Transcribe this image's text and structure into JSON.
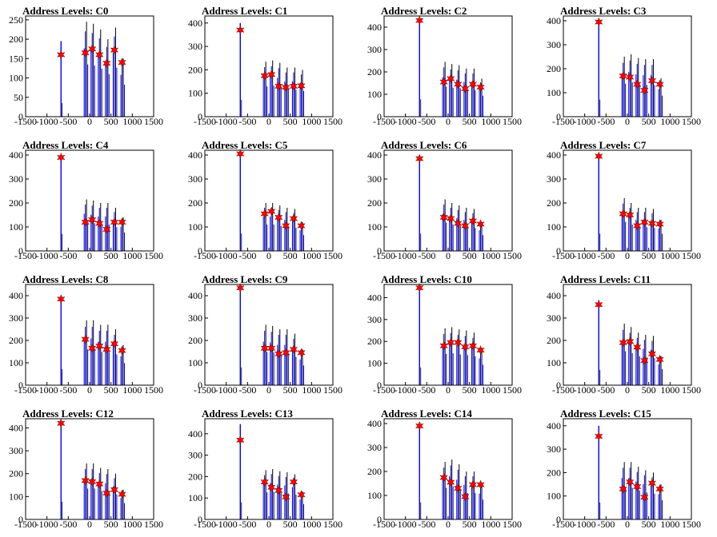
{
  "colors": {
    "trace_blue": "#0000ff",
    "trace_black": "#000000",
    "marker": "#ff0000",
    "frame": "#000000"
  },
  "chart_data": [
    {
      "type": "line",
      "title": "Address Levels: C0",
      "x_ticks": [
        "-1500",
        "-1000",
        "-500",
        "0",
        "500",
        "1000",
        "1500"
      ],
      "xlim": [
        -1500,
        1500
      ],
      "y_ticks": [
        "0",
        "50",
        "100",
        "150",
        "200",
        "250"
      ],
      "ylim": [
        0,
        260
      ],
      "x": [
        -670,
        -100,
        60,
        230,
        400,
        580,
        760
      ],
      "spike_heights": [
        195,
        245,
        240,
        225,
        200,
        230,
        150
      ],
      "marker_values": [
        160,
        165,
        175,
        160,
        138,
        172,
        140
      ]
    },
    {
      "type": "line",
      "title": "Address Levels: C1",
      "x_ticks": [
        "-1500",
        "-1000",
        "-500",
        "0",
        "500",
        "1000",
        "1500"
      ],
      "xlim": [
        -1500,
        1500
      ],
      "y_ticks": [
        "0",
        "100",
        "200",
        "300",
        "400"
      ],
      "ylim": [
        0,
        430
      ],
      "x": [
        -670,
        -100,
        60,
        230,
        400,
        580,
        760
      ],
      "spike_heights": [
        400,
        235,
        240,
        230,
        210,
        210,
        200
      ],
      "marker_values": [
        370,
        175,
        180,
        130,
        125,
        130,
        132
      ]
    },
    {
      "type": "line",
      "title": "Address Levels: C2",
      "x_ticks": [
        "-1500",
        "-1000",
        "-500",
        "0",
        "500",
        "1000",
        "1500"
      ],
      "xlim": [
        -1500,
        1500
      ],
      "y_ticks": [
        "0",
        "100",
        "200",
        "300",
        "400"
      ],
      "ylim": [
        0,
        450
      ],
      "x": [
        -670,
        -100,
        60,
        230,
        400,
        580,
        760
      ],
      "spike_heights": [
        430,
        245,
        235,
        230,
        215,
        215,
        170
      ],
      "marker_values": [
        430,
        155,
        170,
        145,
        125,
        145,
        132
      ]
    },
    {
      "type": "line",
      "title": "Address Levels: C3",
      "x_ticks": [
        "-1500",
        "-1000",
        "-500",
        "0",
        "500",
        "1000",
        "1500"
      ],
      "xlim": [
        -1500,
        1500
      ],
      "y_ticks": [
        "0",
        "100",
        "200",
        "300",
        "400"
      ],
      "ylim": [
        0,
        420
      ],
      "x": [
        -670,
        -100,
        60,
        230,
        400,
        580,
        760
      ],
      "spike_heights": [
        395,
        250,
        260,
        245,
        240,
        240,
        160
      ],
      "marker_values": [
        395,
        170,
        165,
        135,
        110,
        150,
        135
      ]
    },
    {
      "type": "line",
      "title": "Address Levels: C4",
      "x_ticks": [
        "-1500",
        "-1000",
        "-500",
        "0",
        "500",
        "1000",
        "1500"
      ],
      "xlim": [
        -1500,
        1500
      ],
      "y_ticks": [
        "0",
        "100",
        "200",
        "300",
        "400"
      ],
      "ylim": [
        0,
        420
      ],
      "x": [
        -670,
        -100,
        60,
        230,
        400,
        580,
        760
      ],
      "spike_heights": [
        395,
        215,
        210,
        200,
        200,
        180,
        140
      ],
      "marker_values": [
        390,
        120,
        130,
        115,
        90,
        120,
        120
      ]
    },
    {
      "type": "line",
      "title": "Address Levels: C5",
      "x_ticks": [
        "-1500",
        "-1000",
        "-500",
        "0",
        "500",
        "1000",
        "1500"
      ],
      "xlim": [
        -1500,
        1500
      ],
      "y_ticks": [
        "0",
        "100",
        "200",
        "300",
        "400"
      ],
      "ylim": [
        0,
        420
      ],
      "x": [
        -670,
        -100,
        60,
        230,
        400,
        580,
        760
      ],
      "spike_heights": [
        405,
        200,
        200,
        190,
        180,
        175,
        120
      ],
      "marker_values": [
        405,
        155,
        165,
        140,
        105,
        135,
        105
      ]
    },
    {
      "type": "line",
      "title": "Address Levels: C6",
      "x_ticks": [
        "-1500",
        "-1000",
        "-500",
        "0",
        "500",
        "1000",
        "1500"
      ],
      "xlim": [
        -1500,
        1500
      ],
      "y_ticks": [
        "0",
        "100",
        "200",
        "300",
        "400"
      ],
      "ylim": [
        0,
        420
      ],
      "x": [
        -670,
        -100,
        60,
        230,
        400,
        580,
        760
      ],
      "spike_heights": [
        400,
        215,
        200,
        190,
        180,
        175,
        120
      ],
      "marker_values": [
        385,
        140,
        135,
        115,
        105,
        125,
        112
      ]
    },
    {
      "type": "line",
      "title": "Address Levels: C7",
      "x_ticks": [
        "-1500",
        "-1000",
        "-500",
        "0",
        "500",
        "1000",
        "1500"
      ],
      "xlim": [
        -1500,
        1500
      ],
      "y_ticks": [
        "0",
        "100",
        "200",
        "300",
        "400"
      ],
      "ylim": [
        0,
        420
      ],
      "x": [
        -670,
        -100,
        60,
        230,
        400,
        580,
        760
      ],
      "spike_heights": [
        400,
        220,
        200,
        180,
        180,
        175,
        130
      ],
      "marker_values": [
        395,
        155,
        150,
        105,
        120,
        115,
        112
      ]
    },
    {
      "type": "line",
      "title": "Address Levels: C8",
      "x_ticks": [
        "-1500",
        "-1000",
        "-500",
        "0",
        "500",
        "1000",
        "1500"
      ],
      "xlim": [
        -1500,
        1500
      ],
      "y_ticks": [
        "0",
        "100",
        "200",
        "300",
        "400"
      ],
      "ylim": [
        0,
        450
      ],
      "x": [
        -670,
        -100,
        60,
        230,
        400,
        580,
        760
      ],
      "spike_heights": [
        400,
        290,
        290,
        270,
        270,
        250,
        180
      ],
      "marker_values": [
        385,
        205,
        165,
        175,
        160,
        185,
        155
      ]
    },
    {
      "type": "line",
      "title": "Address Levels: C9",
      "x_ticks": [
        "-1500",
        "-1000",
        "-500",
        "0",
        "500",
        "1000",
        "1500"
      ],
      "xlim": [
        -1500,
        1500
      ],
      "y_ticks": [
        "0",
        "100",
        "200",
        "300",
        "400"
      ],
      "ylim": [
        0,
        450
      ],
      "x": [
        -670,
        -100,
        60,
        230,
        400,
        580,
        760
      ],
      "spike_heights": [
        440,
        270,
        265,
        250,
        250,
        230,
        160
      ],
      "marker_values": [
        435,
        165,
        165,
        140,
        145,
        160,
        145
      ]
    },
    {
      "type": "line",
      "title": "Address Levels: C10",
      "x_ticks": [
        "-1500",
        "-1000",
        "-500",
        "0",
        "500",
        "1000",
        "1500"
      ],
      "xlim": [
        -1500,
        1500
      ],
      "y_ticks": [
        "0",
        "100",
        "200",
        "300",
        "400"
      ],
      "ylim": [
        0,
        460
      ],
      "x": [
        -670,
        -100,
        60,
        230,
        400,
        580,
        760
      ],
      "spike_heights": [
        450,
        260,
        265,
        255,
        250,
        240,
        170
      ],
      "marker_values": [
        445,
        180,
        195,
        195,
        175,
        180,
        160
      ]
    },
    {
      "type": "line",
      "title": "Address Levels: C11",
      "x_ticks": [
        "-1500",
        "-1000",
        "-500",
        "0",
        "500",
        "1000",
        "1500"
      ],
      "xlim": [
        -1500,
        1500
      ],
      "y_ticks": [
        "0",
        "100",
        "200",
        "300",
        "400"
      ],
      "ylim": [
        0,
        450
      ],
      "x": [
        -670,
        -100,
        60,
        230,
        400,
        580,
        760
      ],
      "spike_heights": [
        380,
        275,
        260,
        235,
        225,
        220,
        130
      ],
      "marker_values": [
        360,
        190,
        195,
        170,
        110,
        140,
        115
      ]
    },
    {
      "type": "line",
      "title": "Address Levels: C12",
      "x_ticks": [
        "-1500",
        "-1000",
        "-500",
        "0",
        "500",
        "1000",
        "1500"
      ],
      "xlim": [
        -1500,
        1500
      ],
      "y_ticks": [
        "0",
        "100",
        "200",
        "300",
        "400"
      ],
      "ylim": [
        0,
        440
      ],
      "x": [
        -670,
        -100,
        60,
        230,
        400,
        580,
        760
      ],
      "spike_heights": [
        430,
        245,
        245,
        225,
        220,
        200,
        130
      ],
      "marker_values": [
        420,
        170,
        165,
        155,
        115,
        130,
        110
      ]
    },
    {
      "type": "line",
      "title": "Address Levels: C13",
      "x_ticks": [
        "-1500",
        "-1000",
        "-500",
        "0",
        "500",
        "1000",
        "1500"
      ],
      "xlim": [
        -1500,
        1500
      ],
      "y_ticks": [
        "0",
        "100",
        "200",
        "300",
        "400"
      ],
      "ylim": [
        0,
        470
      ],
      "x": [
        -670,
        -100,
        60,
        230,
        400,
        580,
        760
      ],
      "spike_heights": [
        445,
        230,
        235,
        225,
        220,
        210,
        130
      ],
      "marker_values": [
        370,
        175,
        150,
        135,
        105,
        175,
        115
      ]
    },
    {
      "type": "line",
      "title": "Address Levels: C14",
      "x_ticks": [
        "-1500",
        "-1000",
        "-500",
        "0",
        "500",
        "1000",
        "1500"
      ],
      "xlim": [
        -1500,
        1500
      ],
      "y_ticks": [
        "0",
        "100",
        "200",
        "300",
        "400"
      ],
      "ylim": [
        0,
        420
      ],
      "x": [
        -670,
        -100,
        60,
        230,
        400,
        580,
        760
      ],
      "spike_heights": [
        395,
        240,
        250,
        230,
        200,
        200,
        150
      ],
      "marker_values": [
        390,
        175,
        155,
        130,
        95,
        145,
        145
      ]
    },
    {
      "type": "line",
      "title": "Address Levels: C15",
      "x_ticks": [
        "-1500",
        "-1000",
        "-500",
        "0",
        "500",
        "1000",
        "1500"
      ],
      "xlim": [
        -1500,
        1500
      ],
      "y_ticks": [
        "0",
        "100",
        "200",
        "300",
        "400"
      ],
      "ylim": [
        0,
        430
      ],
      "x": [
        -670,
        -100,
        60,
        230,
        400,
        580,
        760
      ],
      "spike_heights": [
        400,
        245,
        245,
        225,
        210,
        200,
        150
      ],
      "marker_values": [
        355,
        130,
        160,
        140,
        95,
        155,
        130
      ]
    }
  ]
}
